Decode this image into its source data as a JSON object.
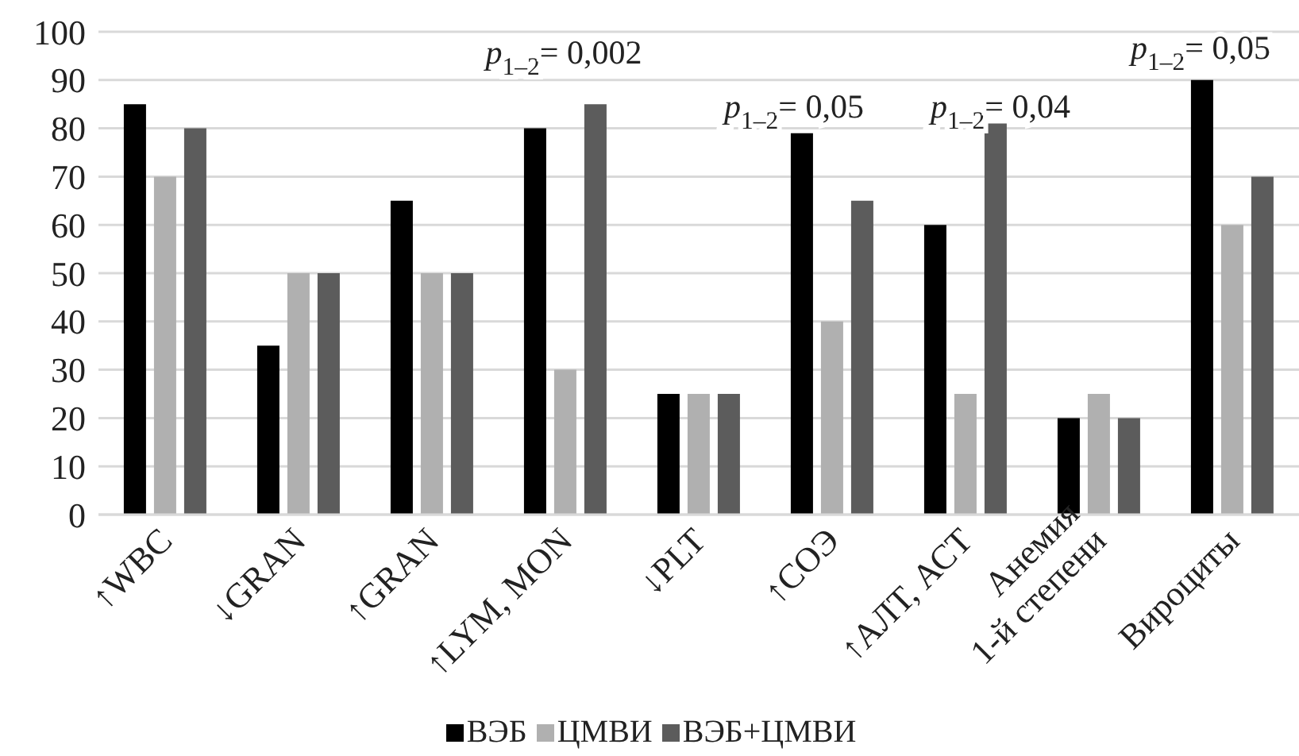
{
  "chart_data": {
    "type": "bar",
    "categories": [
      "↑WBC",
      "↓GRAN",
      "↑GRAN",
      "↑LYM, MON",
      "↓PLT",
      "↑СОЭ",
      "↑АЛТ, АСТ",
      "Анемия\n1-й степени",
      "Вироциты"
    ],
    "series": [
      {
        "name": "ВЭБ",
        "color": "#000000",
        "values": [
          85,
          35,
          65,
          80,
          25,
          79,
          60,
          20,
          90
        ]
      },
      {
        "name": "ЦМВИ",
        "color": "#b0b0b0",
        "values": [
          70,
          50,
          50,
          30,
          25,
          40,
          25,
          25,
          60
        ]
      },
      {
        "name": "ВЭБ+ЦМВИ",
        "color": "#5c5c5c",
        "values": [
          80,
          50,
          50,
          85,
          25,
          65,
          81,
          20,
          70
        ]
      }
    ],
    "ylim": [
      0,
      100
    ],
    "yticks": [
      0,
      10,
      20,
      30,
      40,
      50,
      60,
      70,
      80,
      90,
      100
    ],
    "grid": "y",
    "legend": "bottom",
    "annotations": [
      "p$_{1–2}$= 0,002",
      "p$_{1–2}$= 0,05",
      "p$_{1–2}$= 0,04",
      "p$_{1–2}$= 0,05"
    ]
  }
}
